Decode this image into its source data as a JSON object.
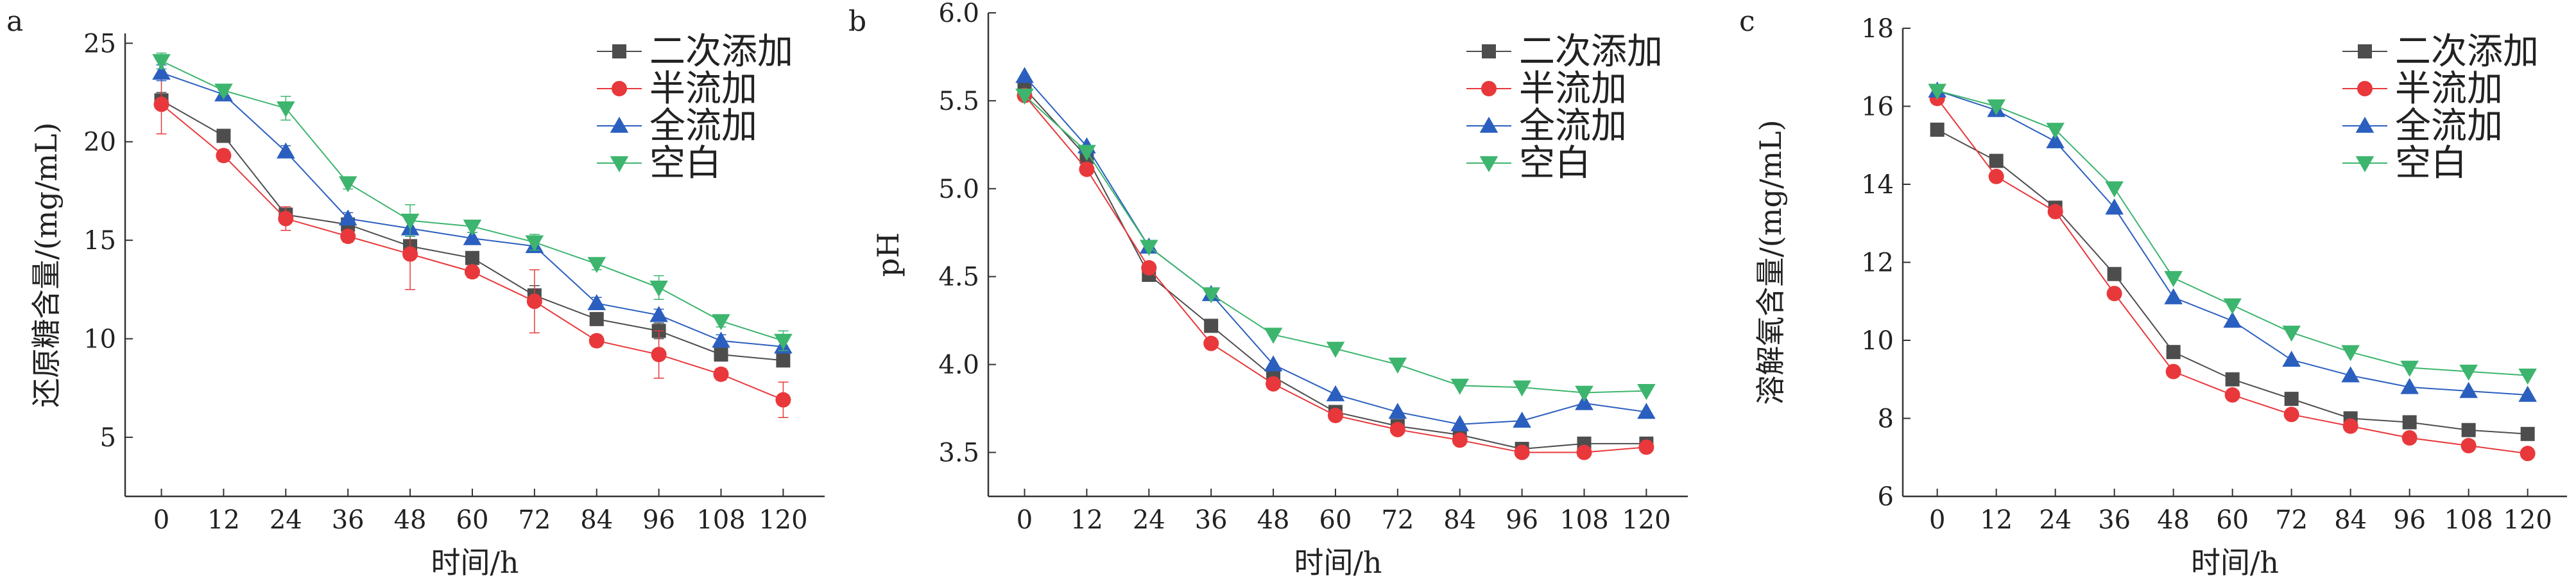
{
  "chart_data": [
    {
      "type": "line",
      "panel_label": "a",
      "title": "",
      "xlabel": "时间/h",
      "ylabel": "还原糖含量/(mg/mL)",
      "x": [
        0,
        12,
        24,
        36,
        48,
        60,
        72,
        84,
        96,
        108,
        120
      ],
      "xticks": [
        "0",
        "12",
        "24",
        "36",
        "48",
        "60",
        "72",
        "84",
        "96",
        "108",
        "120"
      ],
      "xlim": [
        -7,
        128
      ],
      "ylim": [
        2,
        25.5
      ],
      "yticks": [
        5,
        10,
        15,
        20,
        25
      ],
      "series": [
        {
          "name": "二次添加",
          "marker": "square",
          "color": "#4d4d4d",
          "values": [
            22.1,
            20.3,
            16.3,
            15.8,
            14.7,
            14.1,
            12.2,
            11.0,
            10.4,
            9.2,
            8.9
          ],
          "errors": [
            0.4,
            0.2,
            0.3,
            0.3,
            0.6,
            0.3,
            0.5,
            0.3,
            0.4,
            0.2,
            0.3
          ]
        },
        {
          "name": "半流加",
          "marker": "circle",
          "color": "#e8383b",
          "values": [
            21.9,
            19.3,
            16.1,
            15.2,
            14.3,
            13.4,
            11.9,
            9.9,
            9.2,
            8.2,
            6.9
          ],
          "errors": [
            1.5,
            0.3,
            0.6,
            0.3,
            1.8,
            0.3,
            1.6,
            0.3,
            1.2,
            0.3,
            0.9
          ]
        },
        {
          "name": "全流加",
          "marker": "triangle-up",
          "color": "#2b5fbf",
          "values": [
            23.5,
            22.4,
            19.5,
            16.1,
            15.6,
            15.1,
            14.7,
            11.8,
            11.2,
            9.9,
            9.6
          ],
          "errors": [
            0.4,
            0.2,
            0.3,
            0.3,
            0.4,
            0.3,
            0.3,
            0.3,
            0.3,
            0.3,
            0.3
          ]
        },
        {
          "name": "空白",
          "marker": "triangle-down",
          "color": "#3db56e",
          "values": [
            24.1,
            22.6,
            21.7,
            17.9,
            16.0,
            15.7,
            14.9,
            13.8,
            12.6,
            10.9,
            9.9
          ],
          "errors": [
            0.4,
            0.2,
            0.6,
            0.3,
            0.8,
            0.3,
            0.4,
            0.3,
            0.6,
            0.3,
            0.5
          ]
        }
      ]
    },
    {
      "type": "line",
      "panel_label": "b",
      "title": "",
      "xlabel": "时间/h",
      "ylabel": "pH",
      "x": [
        0,
        12,
        24,
        36,
        48,
        60,
        72,
        84,
        96,
        108,
        120
      ],
      "xticks": [
        "0",
        "12",
        "24",
        "36",
        "48",
        "60",
        "72",
        "84",
        "96",
        "108",
        "120"
      ],
      "xlim": [
        -7,
        128
      ],
      "ylim": [
        3.25,
        6.0
      ],
      "yticks": [
        "3.5",
        "4.0",
        "4.5",
        "5.0",
        "5.5",
        "6.0"
      ],
      "series": [
        {
          "name": "二次添加",
          "marker": "square",
          "color": "#4d4d4d",
          "values": [
            5.57,
            5.18,
            4.51,
            4.22,
            3.93,
            3.73,
            3.65,
            3.6,
            3.52,
            3.55,
            3.55
          ]
        },
        {
          "name": "半流加",
          "marker": "circle",
          "color": "#e8383b",
          "values": [
            5.53,
            5.11,
            4.55,
            4.12,
            3.89,
            3.71,
            3.63,
            3.57,
            3.5,
            3.5,
            3.53
          ]
        },
        {
          "name": "全流加",
          "marker": "triangle-up",
          "color": "#2b5fbf",
          "values": [
            5.64,
            5.24,
            4.67,
            4.4,
            4.0,
            3.83,
            3.73,
            3.66,
            3.68,
            3.78,
            3.73
          ]
        },
        {
          "name": "空白",
          "marker": "triangle-down",
          "color": "#3db56e",
          "values": [
            5.53,
            5.21,
            4.67,
            4.4,
            4.17,
            4.09,
            4.0,
            3.88,
            3.87,
            3.84,
            3.85
          ]
        }
      ]
    },
    {
      "type": "line",
      "panel_label": "c",
      "title": "",
      "xlabel": "时间/h",
      "ylabel": "溶解氧含量/(mg/mL)",
      "x": [
        0,
        12,
        24,
        36,
        48,
        60,
        72,
        84,
        96,
        108,
        120
      ],
      "xticks": [
        "0",
        "12",
        "24",
        "36",
        "48",
        "60",
        "72",
        "84",
        "96",
        "108",
        "120"
      ],
      "xlim": [
        -7,
        128
      ],
      "ylim": [
        6,
        18
      ],
      "yticks": [
        6,
        8,
        10,
        12,
        14,
        16,
        18
      ],
      "series": [
        {
          "name": "二次添加",
          "marker": "square",
          "color": "#4d4d4d",
          "values": [
            15.4,
            14.6,
            13.4,
            11.7,
            9.7,
            9.0,
            8.5,
            8.0,
            7.9,
            7.7,
            7.6
          ]
        },
        {
          "name": "半流加",
          "marker": "circle",
          "color": "#e8383b",
          "values": [
            16.2,
            14.2,
            13.3,
            11.2,
            9.2,
            8.6,
            8.1,
            7.8,
            7.5,
            7.3,
            7.1
          ]
        },
        {
          "name": "全流加",
          "marker": "triangle-up",
          "color": "#2b5fbf",
          "values": [
            16.4,
            15.9,
            15.1,
            13.4,
            11.1,
            10.5,
            9.5,
            9.1,
            8.8,
            8.7,
            8.6
          ]
        },
        {
          "name": "空白",
          "marker": "triangle-down",
          "color": "#3db56e",
          "values": [
            16.4,
            16.0,
            15.4,
            13.9,
            11.6,
            10.9,
            10.2,
            9.7,
            9.3,
            9.2,
            9.1
          ]
        }
      ]
    }
  ]
}
